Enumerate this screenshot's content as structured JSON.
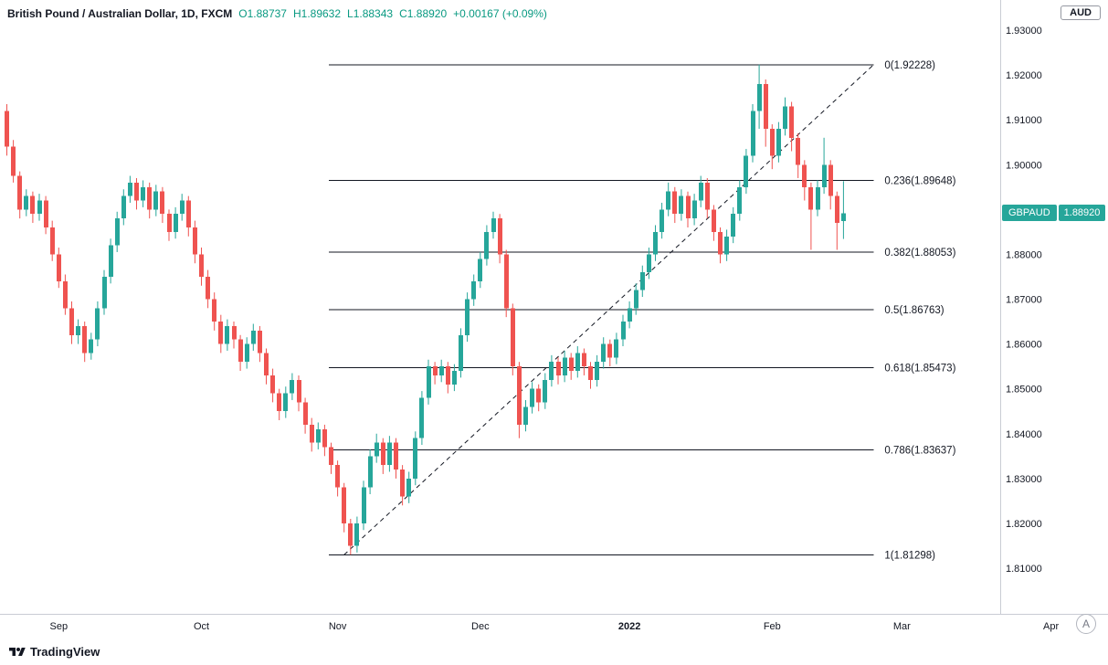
{
  "header": {
    "title": "British Pound / Australian Dollar, 1D, FXCM",
    "open": "O1.88737",
    "high": "H1.89632",
    "low": "L1.88343",
    "close": "C1.88920",
    "change": "+0.00167 (+0.09%)"
  },
  "price_axis": {
    "currency": "AUD",
    "symbol_label": "GBPAUD",
    "last_price": "1.88920"
  },
  "footer": {
    "brand": "TradingView",
    "avatar_letter": "A"
  },
  "colors": {
    "up_candle": "#26a69a",
    "down_candle": "#ef5350",
    "legend_value_text": "#089981",
    "label_bg": "#26a69a",
    "axis_text": "#131722",
    "axis_border": "#c9ccd4",
    "drawing": "#131722"
  },
  "chart_data": {
    "type": "candlestick",
    "title": "British Pound / Australian Dollar, 1D, FXCM",
    "symbol": "GBPAUD",
    "timeframe": "1D",
    "exchange": "FXCM",
    "last_price": 1.8892,
    "ylim": [
      1.81,
      1.93
    ],
    "grid": false,
    "y_ticks": [
      "1.93000",
      "1.92000",
      "1.91000",
      "1.90000",
      "1.89000",
      "1.88000",
      "1.87000",
      "1.86000",
      "1.85000",
      "1.84000",
      "1.83000",
      "1.82000",
      "1.81000"
    ],
    "x_labels": [
      {
        "text": "Sep",
        "bar": 8,
        "emphasis": false
      },
      {
        "text": "Oct",
        "bar": 30,
        "emphasis": false
      },
      {
        "text": "Nov",
        "bar": 51,
        "emphasis": false
      },
      {
        "text": "Dec",
        "bar": 73,
        "emphasis": false
      },
      {
        "text": "2022",
        "bar": 96,
        "emphasis": true
      },
      {
        "text": "Feb",
        "bar": 118,
        "emphasis": false
      },
      {
        "text": "Mar",
        "bar": 138,
        "emphasis": false
      },
      {
        "text": "Apr",
        "bar": 161,
        "emphasis": false
      }
    ],
    "fib_retracement": {
      "start_bar": 50,
      "end_bar": 134,
      "levels": [
        {
          "label": "0(1.92228)",
          "value": 1.92228
        },
        {
          "label": "0.236(1.89648)",
          "value": 1.89648
        },
        {
          "label": "0.382(1.88053)",
          "value": 1.88053
        },
        {
          "label": "0.5(1.86763)",
          "value": 1.86763
        },
        {
          "label": "0.618(1.85473)",
          "value": 1.85473
        },
        {
          "label": "0.786(1.83637)",
          "value": 1.83637
        },
        {
          "label": "1(1.81298)",
          "value": 1.81298
        }
      ],
      "trendline": {
        "from": {
          "bar": 52,
          "price": 1.81298
        },
        "to": {
          "bar": 134,
          "price": 1.92228
        }
      }
    },
    "candles": [
      [
        1.912,
        1.9135,
        1.902,
        1.904
      ],
      [
        1.904,
        1.9055,
        1.896,
        1.8975
      ],
      [
        1.8975,
        1.8985,
        1.888,
        1.89
      ],
      [
        1.89,
        1.8945,
        1.8885,
        1.893
      ],
      [
        1.893,
        1.894,
        1.887,
        1.889
      ],
      [
        1.889,
        1.8935,
        1.8875,
        1.892
      ],
      [
        1.892,
        1.893,
        1.8845,
        1.886
      ],
      [
        1.886,
        1.8875,
        1.8785,
        1.88
      ],
      [
        1.88,
        1.8815,
        1.8725,
        1.874
      ],
      [
        1.874,
        1.8755,
        1.8665,
        1.868
      ],
      [
        1.868,
        1.8695,
        1.86,
        1.862
      ],
      [
        1.862,
        1.8655,
        1.86,
        1.864
      ],
      [
        1.864,
        1.865,
        1.856,
        1.858
      ],
      [
        1.858,
        1.8625,
        1.8565,
        1.861
      ],
      [
        1.861,
        1.8695,
        1.8595,
        1.868
      ],
      [
        1.868,
        1.8765,
        1.8665,
        1.875
      ],
      [
        1.875,
        1.8835,
        1.8735,
        1.882
      ],
      [
        1.882,
        1.8895,
        1.8805,
        1.888
      ],
      [
        1.888,
        1.8945,
        1.8865,
        1.893
      ],
      [
        1.893,
        1.8975,
        1.8915,
        1.896
      ],
      [
        1.896,
        1.897,
        1.89,
        1.892
      ],
      [
        1.892,
        1.8965,
        1.8905,
        1.895
      ],
      [
        1.895,
        1.896,
        1.888,
        1.89
      ],
      [
        1.89,
        1.8955,
        1.8885,
        1.894
      ],
      [
        1.894,
        1.895,
        1.887,
        1.889
      ],
      [
        1.889,
        1.89,
        1.883,
        1.885
      ],
      [
        1.885,
        1.8905,
        1.8835,
        1.889
      ],
      [
        1.889,
        1.8935,
        1.8875,
        1.892
      ],
      [
        1.892,
        1.893,
        1.884,
        1.886
      ],
      [
        1.886,
        1.8875,
        1.878,
        1.88
      ],
      [
        1.88,
        1.8815,
        1.873,
        1.875
      ],
      [
        1.875,
        1.8765,
        1.868,
        1.87
      ],
      [
        1.87,
        1.8715,
        1.863,
        1.865
      ],
      [
        1.865,
        1.8665,
        1.858,
        1.86
      ],
      [
        1.86,
        1.8655,
        1.8585,
        1.864
      ],
      [
        1.864,
        1.865,
        1.859,
        1.861
      ],
      [
        1.861,
        1.862,
        1.854,
        1.856
      ],
      [
        1.856,
        1.8615,
        1.8545,
        1.86
      ],
      [
        1.86,
        1.8645,
        1.8585,
        1.863
      ],
      [
        1.863,
        1.864,
        1.856,
        1.858
      ],
      [
        1.858,
        1.859,
        1.851,
        1.853
      ],
      [
        1.853,
        1.8545,
        1.847,
        1.849
      ],
      [
        1.849,
        1.85,
        1.843,
        1.845
      ],
      [
        1.845,
        1.8505,
        1.8435,
        1.849
      ],
      [
        1.849,
        1.8535,
        1.8475,
        1.852
      ],
      [
        1.852,
        1.853,
        1.845,
        1.847
      ],
      [
        1.847,
        1.848,
        1.84,
        1.842
      ],
      [
        1.842,
        1.8435,
        1.836,
        1.838
      ],
      [
        1.838,
        1.8425,
        1.8365,
        1.841
      ],
      [
        1.841,
        1.842,
        1.835,
        1.837
      ],
      [
        1.837,
        1.838,
        1.831,
        1.833
      ],
      [
        1.833,
        1.834,
        1.826,
        1.828
      ],
      [
        1.828,
        1.829,
        1.818,
        1.82
      ],
      [
        1.82,
        1.821,
        1.813,
        1.815
      ],
      [
        1.815,
        1.8215,
        1.8135,
        1.82
      ],
      [
        1.82,
        1.8295,
        1.8185,
        1.828
      ],
      [
        1.828,
        1.8365,
        1.8265,
        1.835
      ],
      [
        1.835,
        1.84,
        1.8335,
        1.838
      ],
      [
        1.838,
        1.839,
        1.831,
        1.833
      ],
      [
        1.833,
        1.8395,
        1.8315,
        1.838
      ],
      [
        1.838,
        1.839,
        1.83,
        1.832
      ],
      [
        1.832,
        1.833,
        1.824,
        1.826
      ],
      [
        1.826,
        1.8315,
        1.8245,
        1.83
      ],
      [
        1.83,
        1.8405,
        1.8285,
        1.839
      ],
      [
        1.839,
        1.8495,
        1.8375,
        1.848
      ],
      [
        1.848,
        1.8565,
        1.8465,
        1.855
      ],
      [
        1.855,
        1.856,
        1.851,
        1.853
      ],
      [
        1.853,
        1.8565,
        1.8515,
        1.855
      ],
      [
        1.855,
        1.856,
        1.849,
        1.851
      ],
      [
        1.851,
        1.8555,
        1.8495,
        1.854
      ],
      [
        1.854,
        1.8635,
        1.8525,
        1.862
      ],
      [
        1.862,
        1.8715,
        1.8605,
        1.87
      ],
      [
        1.87,
        1.8755,
        1.8685,
        1.874
      ],
      [
        1.874,
        1.8805,
        1.8725,
        1.879
      ],
      [
        1.879,
        1.8865,
        1.8775,
        1.885
      ],
      [
        1.885,
        1.8895,
        1.8835,
        1.888
      ],
      [
        1.888,
        1.889,
        1.878,
        1.88
      ],
      [
        1.88,
        1.881,
        1.866,
        1.868
      ],
      [
        1.868,
        1.869,
        1.853,
        1.855
      ],
      [
        1.855,
        1.856,
        1.839,
        1.842
      ],
      [
        1.842,
        1.8475,
        1.8405,
        1.846
      ],
      [
        1.846,
        1.8515,
        1.8445,
        1.85
      ],
      [
        1.85,
        1.851,
        1.845,
        1.847
      ],
      [
        1.847,
        1.8535,
        1.8455,
        1.852
      ],
      [
        1.852,
        1.8575,
        1.8505,
        1.856
      ],
      [
        1.856,
        1.857,
        1.851,
        1.853
      ],
      [
        1.853,
        1.8585,
        1.8515,
        1.857
      ],
      [
        1.857,
        1.858,
        1.852,
        1.854
      ],
      [
        1.854,
        1.8595,
        1.8525,
        1.858
      ],
      [
        1.858,
        1.859,
        1.853,
        1.855
      ],
      [
        1.855,
        1.856,
        1.85,
        1.852
      ],
      [
        1.852,
        1.8575,
        1.8505,
        1.856
      ],
      [
        1.856,
        1.8615,
        1.8545,
        1.86
      ],
      [
        1.86,
        1.861,
        1.855,
        1.857
      ],
      [
        1.857,
        1.8625,
        1.8555,
        1.861
      ],
      [
        1.861,
        1.8665,
        1.8595,
        1.865
      ],
      [
        1.865,
        1.8695,
        1.8635,
        1.868
      ],
      [
        1.868,
        1.8735,
        1.8665,
        1.872
      ],
      [
        1.872,
        1.8775,
        1.8705,
        1.876
      ],
      [
        1.876,
        1.8815,
        1.8745,
        1.88
      ],
      [
        1.88,
        1.8865,
        1.8785,
        1.885
      ],
      [
        1.885,
        1.8915,
        1.8835,
        1.89
      ],
      [
        1.89,
        1.896,
        1.8885,
        1.894
      ],
      [
        1.894,
        1.895,
        1.887,
        1.889
      ],
      [
        1.889,
        1.8945,
        1.8875,
        1.893
      ],
      [
        1.893,
        1.894,
        1.886,
        1.888
      ],
      [
        1.888,
        1.8935,
        1.8865,
        1.892
      ],
      [
        1.892,
        1.8975,
        1.8905,
        1.896
      ],
      [
        1.896,
        1.897,
        1.888,
        1.89
      ],
      [
        1.89,
        1.891,
        1.883,
        1.885
      ],
      [
        1.885,
        1.886,
        1.878,
        1.88
      ],
      [
        1.88,
        1.8855,
        1.8785,
        1.884
      ],
      [
        1.884,
        1.8905,
        1.8825,
        1.889
      ],
      [
        1.889,
        1.8965,
        1.8875,
        1.895
      ],
      [
        1.895,
        1.9035,
        1.8935,
        1.902
      ],
      [
        1.902,
        1.9135,
        1.9005,
        1.912
      ],
      [
        1.912,
        1.9223,
        1.908,
        1.918
      ],
      [
        1.918,
        1.919,
        1.904,
        1.908
      ],
      [
        1.908,
        1.909,
        1.899,
        1.902
      ],
      [
        1.902,
        1.9095,
        1.9005,
        1.908
      ],
      [
        1.908,
        1.915,
        1.9065,
        1.913
      ],
      [
        1.913,
        1.914,
        1.903,
        1.906
      ],
      [
        1.906,
        1.907,
        1.897,
        1.9
      ],
      [
        1.9,
        1.901,
        1.892,
        1.895
      ],
      [
        1.895,
        1.896,
        1.881,
        1.89
      ],
      [
        1.89,
        1.8965,
        1.8885,
        1.895
      ],
      [
        1.895,
        1.906,
        1.8935,
        1.9
      ],
      [
        1.9,
        1.901,
        1.89,
        1.893
      ],
      [
        1.893,
        1.894,
        1.881,
        1.887
      ],
      [
        1.88737,
        1.89632,
        1.88343,
        1.8892
      ]
    ]
  }
}
